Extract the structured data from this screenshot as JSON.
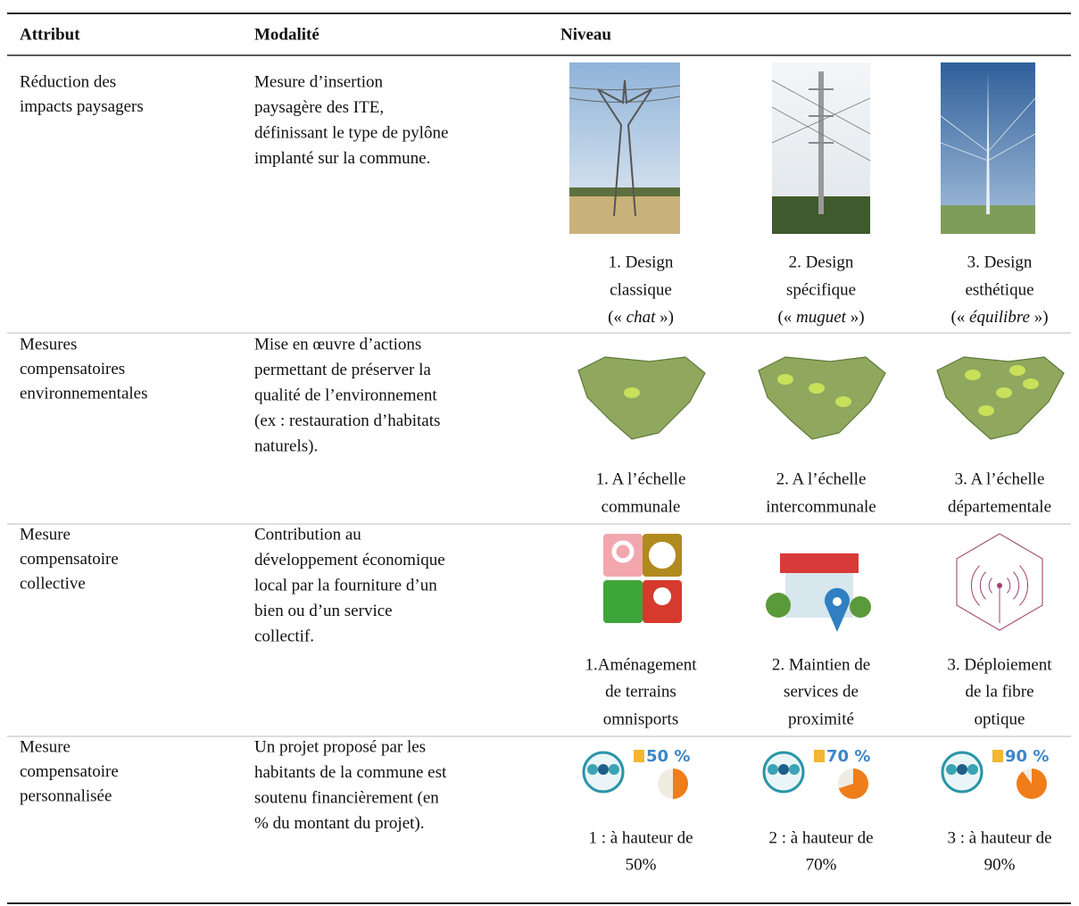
{
  "header": {
    "attribut": "Attribut",
    "modalite": "Modalité",
    "niveau": "Niveau"
  },
  "rows": [
    {
      "attribut": [
        "Réduction des",
        "impacts paysagers"
      ],
      "modalite": [
        "Mesure d’insertion",
        "paysagère des ITE,",
        "définissant le type de pylône",
        "implanté sur la commune."
      ],
      "levels": [
        {
          "lines": [
            "1. Design",
            "classique",
            [
              "(« ",
              "chat",
              " »)"
            ]
          ]
        },
        {
          "lines": [
            "2. Design",
            "spécifique",
            [
              "(« ",
              "muguet",
              " »)"
            ]
          ]
        },
        {
          "lines": [
            "3. Design",
            "esthétique",
            [
              "(« ",
              "équilibre",
              " »)"
            ]
          ]
        }
      ]
    },
    {
      "attribut": [
        "Mesures",
        "compensatoires",
        "environnementales"
      ],
      "modalite": [
        "Mise en œuvre d’actions",
        "permettant de préserver la",
        "qualité de l’environnement",
        "(ex : restauration d’habitats",
        "naturels)."
      ],
      "levels": [
        {
          "lines": [
            "1. A l’échelle",
            "communale"
          ]
        },
        {
          "lines": [
            "2. A l’échelle",
            "intercommunale"
          ]
        },
        {
          "lines": [
            "3. A l’échelle",
            "départementale"
          ]
        }
      ]
    },
    {
      "attribut": [
        "Mesure",
        "compensatoire",
        "collective"
      ],
      "modalite": [
        "Contribution au",
        "développement économique",
        "local par la fourniture d’un",
        "bien ou d’un service",
        "collectif."
      ],
      "levels": [
        {
          "lines": [
            "1.Aménagement",
            "de terrains",
            "omnisports"
          ]
        },
        {
          "lines": [
            "2. Maintien de",
            "services de",
            "proximité"
          ]
        },
        {
          "lines": [
            "3. Déploiement",
            "de la fibre",
            "optique"
          ]
        }
      ]
    },
    {
      "attribut": [
        "Mesure",
        "compensatoire",
        "personnalisée"
      ],
      "modalite": [
        "Un projet proposé par les",
        "habitants de la commune est",
        "soutenu financièrement (en",
        "% du montant du projet)."
      ],
      "levels": [
        {
          "badge": {
            "value": 50,
            "label": "50 %"
          },
          "lines": [
            "1 : à hauteur de",
            "50%"
          ]
        },
        {
          "badge": {
            "value": 70,
            "label": "70 %"
          },
          "lines": [
            "2 : à hauteur de",
            "70%"
          ]
        },
        {
          "badge": {
            "value": 90,
            "label": "90 %"
          },
          "lines": [
            "3 : à hauteur de",
            "90%"
          ]
        }
      ]
    }
  ]
}
